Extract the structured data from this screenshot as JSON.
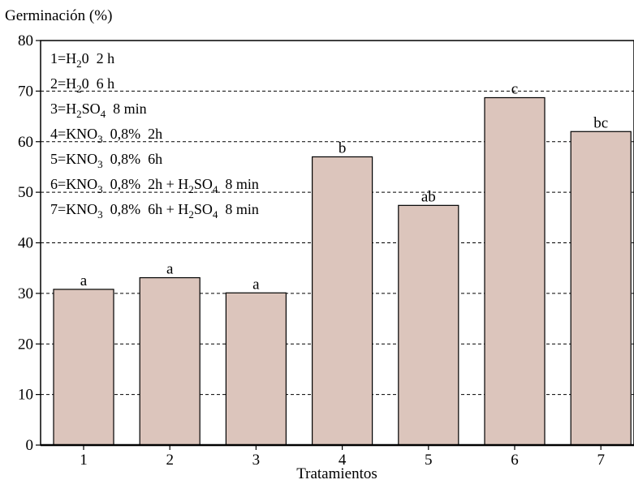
{
  "chart_data": {
    "type": "bar",
    "ylabel": "Germinación (%)",
    "xlabel": "Tratamientos",
    "categories": [
      "1",
      "2",
      "3",
      "4",
      "5",
      "6",
      "7"
    ],
    "values": [
      30.8,
      33.1,
      30.1,
      57.0,
      47.4,
      68.7,
      62.0
    ],
    "significance_letters": [
      "a",
      "a",
      "a",
      "b",
      "ab",
      "c",
      "bc"
    ],
    "ylim": [
      0,
      80
    ],
    "yticks": [
      0,
      10,
      20,
      30,
      40,
      50,
      60,
      70,
      80
    ],
    "grid": true,
    "bar_color": "#dcc5bc",
    "legend_position": "top-left",
    "legend": [
      [
        {
          "t": "1=H"
        },
        {
          "t": "2",
          "sub": true
        },
        {
          "t": "0  2 h"
        }
      ],
      [
        {
          "t": "2=H"
        },
        {
          "t": "2",
          "sub": true
        },
        {
          "t": "0  6 h"
        }
      ],
      [
        {
          "t": "3=H"
        },
        {
          "t": "2",
          "sub": true
        },
        {
          "t": "SO"
        },
        {
          "t": "4",
          "sub": true
        },
        {
          "t": "  8 min"
        }
      ],
      [
        {
          "t": "4=KNO"
        },
        {
          "t": "3",
          "sub": true
        },
        {
          "t": "  0,8%  2h"
        }
      ],
      [
        {
          "t": "5=KNO"
        },
        {
          "t": "3",
          "sub": true
        },
        {
          "t": "  0,8%  6h"
        }
      ],
      [
        {
          "t": "6=KNO"
        },
        {
          "t": "3",
          "sub": true
        },
        {
          "t": "  0,8%  2h + H"
        },
        {
          "t": "2",
          "sub": true
        },
        {
          "t": "SO"
        },
        {
          "t": "4",
          "sub": true
        },
        {
          "t": "  8 min"
        }
      ],
      [
        {
          "t": "7=KNO"
        },
        {
          "t": "3",
          "sub": true
        },
        {
          "t": "  0,8%  6h + H"
        },
        {
          "t": "2",
          "sub": true
        },
        {
          "t": "SO"
        },
        {
          "t": "4",
          "sub": true
        },
        {
          "t": "  8 min"
        }
      ]
    ]
  }
}
